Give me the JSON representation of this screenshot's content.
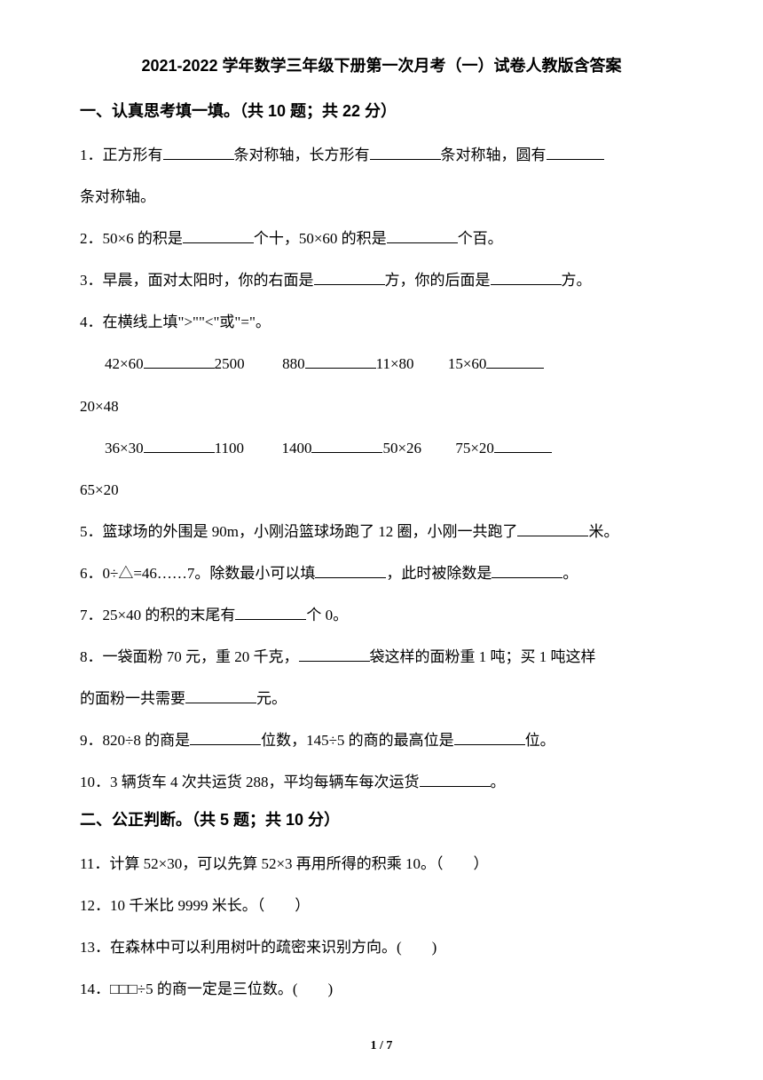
{
  "title": "2021-2022 学年数学三年级下册第一次月考（一）试卷人教版含答案",
  "section1": {
    "header": "一、认真思考填一填。（共 10 题；共 22 分）",
    "q1_p1": "1．正方形有",
    "q1_p2": "条对称轴，长方形有",
    "q1_p3": "条对称轴，圆有",
    "q1_p4": "条对称轴。",
    "q2_p1": "2．50×6 的积是",
    "q2_p2": "个十，50×60 的积是",
    "q2_p3": "个百。",
    "q3_p1": "3．早晨，面对太阳时，你的右面是",
    "q3_p2": "方，你的后面是",
    "q3_p3": "方。",
    "q4_header": "4．在横线上填\">\"\"<\"或\"=\"。",
    "q4_r1_a": "42×60",
    "q4_r1_b": "2500",
    "q4_r1_c": "880",
    "q4_r1_d": "11×80",
    "q4_r1_e": "15×60",
    "q4_r2": "20×48",
    "q4_r3_a": "36×30",
    "q4_r3_b": "1100",
    "q4_r3_c": "1400",
    "q4_r3_d": "50×26",
    "q4_r3_e": "75×20",
    "q4_r4": "65×20",
    "q5_p1": "5．篮球场的外围是 90m，小刚沿篮球场跑了 12 圈，小刚一共跑了",
    "q5_p2": "米。",
    "q6_p1": "6．0÷△=46……7。除数最小可以填",
    "q6_p2": "，此时被除数是",
    "q6_p3": "。",
    "q7_p1": "7．25×40 的积的末尾有",
    "q7_p2": "个 0。",
    "q8_p1": "8．一袋面粉 70 元，重 20 千克，",
    "q8_p2": "袋这样的面粉重 1 吨；买 1 吨这样",
    "q8_p3": "的面粉一共需要",
    "q8_p4": "元。",
    "q9_p1": "9．820÷8 的商是",
    "q9_p2": "位数，145÷5 的商的最高位是",
    "q9_p3": "位。",
    "q10_p1": "10．3 辆货车 4 次共运货 288，平均每辆车每次运货",
    "q10_p2": "。"
  },
  "section2": {
    "header": "二、公正判断。（共 5 题；共 10 分）",
    "q11": "11．计算 52×30，可以先算 52×3 再用所得的积乘 10。（　　）",
    "q12": "12．10 千米比 9999 米长。（　　）",
    "q13": "13．在森林中可以利用树叶的疏密来识别方向。(　　)",
    "q14": "14．□□□÷5 的商一定是三位数。(　　)"
  },
  "page_number": "1 / 7"
}
